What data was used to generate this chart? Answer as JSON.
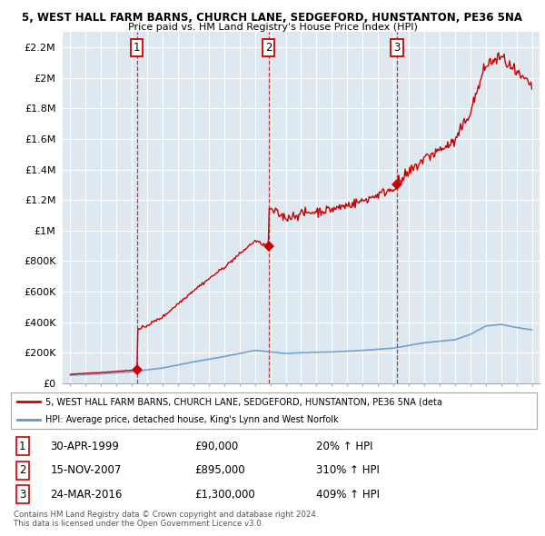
{
  "title1": "5, WEST HALL FARM BARNS, CHURCH LANE, SEDGEFORD, HUNSTANTON, PE36 5NA",
  "title2": "Price paid vs. HM Land Registry's House Price Index (HPI)",
  "ylabel_ticks": [
    "£0",
    "£200K",
    "£400K",
    "£600K",
    "£800K",
    "£1M",
    "£1.2M",
    "£1.4M",
    "£1.6M",
    "£1.8M",
    "£2M",
    "£2.2M"
  ],
  "ytick_values": [
    0,
    200000,
    400000,
    600000,
    800000,
    1000000,
    1200000,
    1400000,
    1600000,
    1800000,
    2000000,
    2200000
  ],
  "ymax": 2300000,
  "xmin": 1994.5,
  "xmax": 2025.5,
  "sale_years": [
    1999.33,
    2007.88,
    2016.23
  ],
  "sale_prices": [
    90000,
    895000,
    1300000
  ],
  "sale_labels": [
    "1",
    "2",
    "3"
  ],
  "vline_color": "#cc0000",
  "red_line_color": "#cc0000",
  "blue_line_color": "#6699cc",
  "chart_bg_color": "#dde8f0",
  "background_color": "#ffffff",
  "grid_color": "#ffffff",
  "table_entries": [
    {
      "num": "1",
      "date": "30-APR-1999",
      "price": "£90,000",
      "hpi": "20% ↑ HPI"
    },
    {
      "num": "2",
      "date": "15-NOV-2007",
      "price": "£895,000",
      "hpi": "310% ↑ HPI"
    },
    {
      "num": "3",
      "date": "24-MAR-2016",
      "price": "£1,300,000",
      "hpi": "409% ↑ HPI"
    }
  ],
  "legend_entry1": "5, WEST HALL FARM BARNS, CHURCH LANE, SEDGEFORD, HUNSTANTON, PE36 5NA (deta",
  "legend_entry2": "HPI: Average price, detached house, King's Lynn and West Norfolk",
  "footnote1": "Contains HM Land Registry data © Crown copyright and database right 2024.",
  "footnote2": "This data is licensed under the Open Government Licence v3.0."
}
